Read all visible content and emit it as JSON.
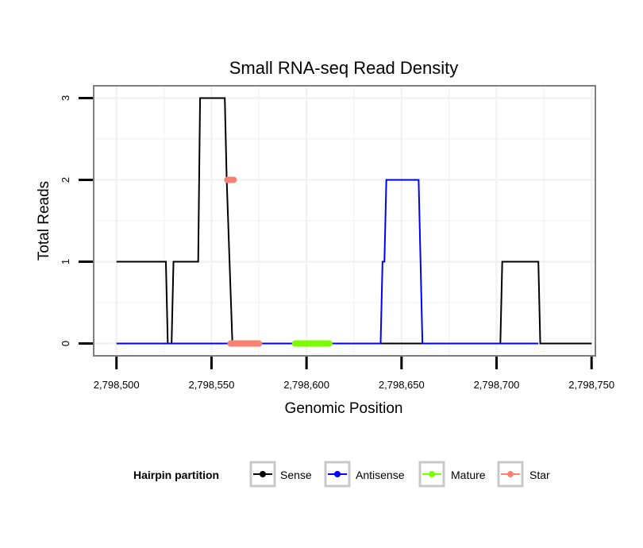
{
  "chart_data": {
    "type": "line",
    "title": "Small RNA-seq Read Density",
    "xlabel": "Genomic Position",
    "ylabel": "Total Reads",
    "xlim": [
      2798488,
      2798752
    ],
    "ylim": [
      -0.15,
      3.15
    ],
    "x_ticks": [
      2798500,
      2798550,
      2798600,
      2798650,
      2798700,
      2798750
    ],
    "x_tick_labels": [
      "2,798,500",
      "2,798,550",
      "2,798,600",
      "2,798,650",
      "2,798,700",
      "2,798,750"
    ],
    "y_ticks": [
      0,
      1,
      2,
      3
    ],
    "y_tick_labels": [
      "0",
      "1",
      "2",
      "3"
    ],
    "grid": true,
    "legend": {
      "title": "Hairpin partition",
      "position": "bottom",
      "entries": [
        {
          "name": "Sense",
          "color": "#000000"
        },
        {
          "name": "Antisense",
          "color": "#0000ff"
        },
        {
          "name": "Mature",
          "color": "#7cfc00"
        },
        {
          "name": "Star",
          "color": "#fa8072"
        }
      ]
    },
    "series": [
      {
        "name": "Sense",
        "color": "#000000",
        "x": [
          2798500,
          2798526,
          2798527,
          2798529,
          2798530,
          2798543,
          2798544,
          2798557,
          2798558,
          2798561,
          2798640,
          2798641,
          2798660,
          2798661,
          2798702,
          2798703,
          2798722,
          2798723,
          2798750
        ],
        "y": [
          1,
          1,
          0,
          0,
          1,
          1,
          3,
          3,
          2,
          0,
          0,
          0,
          0,
          0,
          0,
          1,
          1,
          0,
          0
        ]
      },
      {
        "name": "Antisense",
        "color": "#0000ff",
        "x": [
          2798500,
          2798639,
          2798640,
          2798641,
          2798642,
          2798659,
          2798661,
          2798722
        ],
        "y": [
          0,
          0,
          1,
          1,
          2,
          2,
          0,
          0
        ]
      },
      {
        "name": "Mature",
        "color": "#7cfc00",
        "x": [
          2798594,
          2798612
        ],
        "y": [
          0,
          0
        ]
      },
      {
        "name": "Star",
        "color": "#fa8072",
        "x": [
          2798560,
          2798575
        ],
        "y": [
          0,
          0
        ],
        "points": [
          {
            "x": 2798560,
            "y": 2
          }
        ]
      }
    ]
  }
}
